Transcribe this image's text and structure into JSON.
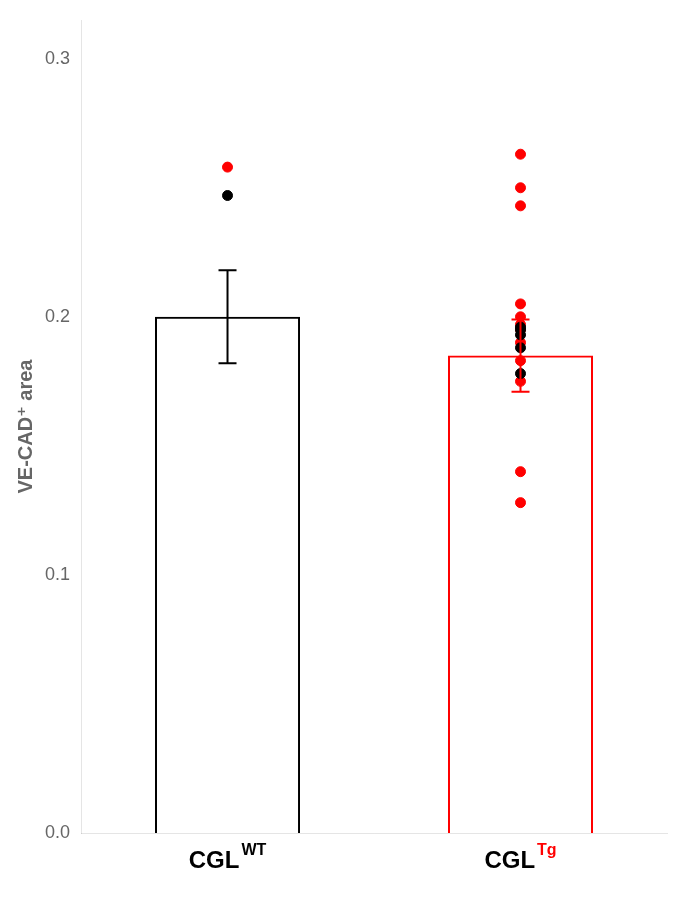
{
  "chart_data": {
    "type": "bar",
    "ylabel": "VE-CAD⁺ area",
    "categories": [
      "CGL WT",
      "CGL Tg"
    ],
    "values": [
      0.2,
      0.185
    ],
    "errors": [
      0.018,
      0.014
    ],
    "points": [
      [
        0.247,
        0.195,
        0.178,
        0.193,
        0.196,
        0.188
      ],
      [
        0.258,
        0.263,
        0.25,
        0.243,
        0.205,
        0.2,
        0.197,
        0.195,
        0.19,
        0.183,
        0.175,
        0.14,
        0.128
      ]
    ],
    "colors": [
      "black",
      "red"
    ],
    "ylim": [
      0.0,
      0.315
    ],
    "yticks": [
      {
        "value": 0.0,
        "label": "0.0"
      },
      0.1,
      0.2,
      0.3
    ],
    "grid": false
  }
}
